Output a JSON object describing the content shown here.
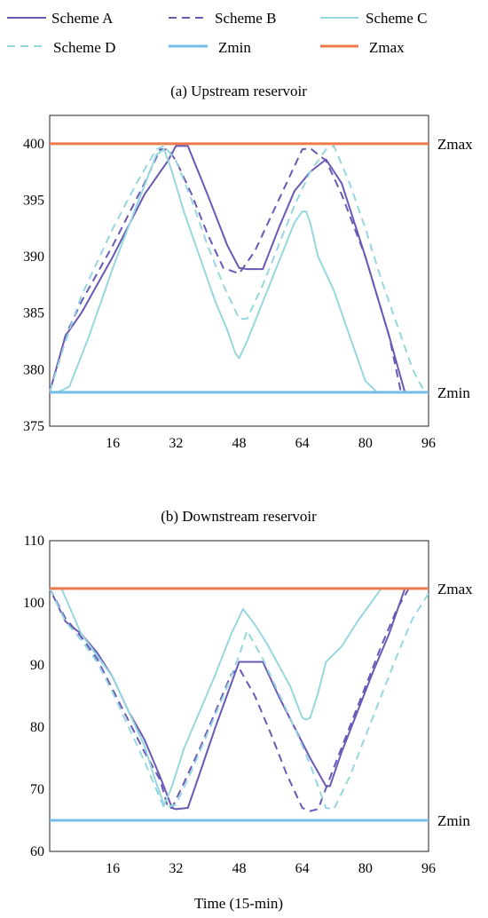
{
  "legend": {
    "entries": [
      {
        "label": "Scheme A",
        "color": "#6a58b5",
        "dash": "solid"
      },
      {
        "label": "Scheme B",
        "color": "#6a58b5",
        "dash": "dashed"
      },
      {
        "label": "Scheme C",
        "color": "#96d7df",
        "dash": "solid"
      },
      {
        "label": "Scheme D",
        "color": "#96d7df",
        "dash": "dashed"
      },
      {
        "label": "Zmin",
        "color": "#74bde4",
        "dash": "solid"
      },
      {
        "label": "Zmax",
        "color": "#ee7a4a",
        "dash": "solid"
      }
    ]
  },
  "colors": {
    "scheme_a": "#6a58b5",
    "scheme_b": "#6a58b5",
    "scheme_c": "#96d7df",
    "scheme_d": "#96d7df",
    "zmin": "#74bde4",
    "zmax": "#ee7a4a"
  },
  "chart_data": [
    {
      "type": "line",
      "title": "(a) Upstream reservoir",
      "xlabel": "",
      "ylabel": "",
      "xlim": [
        0,
        96
      ],
      "ylim": [
        375,
        402.5
      ],
      "xticks": [
        "16",
        "32",
        "48",
        "64",
        "80",
        "96"
      ],
      "yticks": [
        "375",
        "380",
        "385",
        "390",
        "395",
        "400"
      ],
      "grid": false,
      "reference_lines": [
        {
          "name": "Zmax",
          "y": 400
        },
        {
          "name": "Zmin",
          "y": 378
        }
      ],
      "series": [
        {
          "name": "Scheme A",
          "x": [
            0,
            4,
            8,
            16,
            24,
            30,
            32,
            35,
            40,
            45,
            48,
            50,
            54,
            58,
            62,
            66,
            70,
            74,
            80,
            86,
            90
          ],
          "y": [
            378,
            383,
            385,
            390,
            395.5,
            398.5,
            399.8,
            399.8,
            395.5,
            391,
            389,
            388.9,
            388.9,
            392.5,
            395.8,
            397.5,
            398.6,
            396.5,
            390,
            383,
            378
          ]
        },
        {
          "name": "Scheme B",
          "x": [
            0,
            4,
            8,
            16,
            24,
            28,
            30,
            32,
            36,
            40,
            44,
            48,
            52,
            56,
            60,
            64,
            66,
            70,
            74,
            80,
            86,
            89
          ],
          "y": [
            378,
            383,
            386,
            391,
            396.5,
            399.5,
            399.5,
            398.5,
            395.5,
            392,
            389,
            388.5,
            390.5,
            393.5,
            396.5,
            399.5,
            399.6,
            398.5,
            395.5,
            390,
            383,
            378
          ]
        },
        {
          "name": "Scheme C",
          "x": [
            0,
            2,
            5,
            10,
            16,
            22,
            27,
            29,
            31,
            34,
            38,
            42,
            45,
            47,
            48,
            50,
            54,
            58,
            62,
            64,
            65,
            66,
            68,
            72,
            76,
            80,
            83,
            96
          ],
          "y": [
            378,
            378,
            378.5,
            383,
            389,
            394.5,
            399,
            399.5,
            397.5,
            394,
            390,
            386,
            383.5,
            381.5,
            381,
            382.5,
            386,
            389.5,
            393,
            394,
            394,
            393,
            390,
            387,
            383,
            379,
            378,
            378
          ]
        },
        {
          "name": "Scheme D",
          "x": [
            0,
            4,
            8,
            16,
            22,
            27,
            29,
            32,
            36,
            40,
            44,
            48,
            50,
            54,
            58,
            62,
            66,
            70,
            72,
            76,
            80,
            84,
            88,
            92,
            95
          ],
          "y": [
            378,
            382.5,
            386.5,
            392.5,
            396.5,
            399.5,
            399.8,
            398.5,
            395,
            391,
            387.5,
            384.5,
            384.5,
            387.5,
            391,
            394.5,
            397.5,
            399.5,
            399.8,
            396.5,
            392.5,
            388,
            384,
            380,
            378
          ]
        }
      ]
    },
    {
      "type": "line",
      "title": "(b) Downstream reservoir",
      "xlabel": "Time (15-min)",
      "ylabel": "",
      "xlim": [
        0,
        96
      ],
      "ylim": [
        60,
        110
      ],
      "xticks": [
        "16",
        "32",
        "48",
        "64",
        "80",
        "96"
      ],
      "yticks": [
        "60",
        "70",
        "80",
        "90",
        "100",
        "110"
      ],
      "grid": false,
      "reference_lines": [
        {
          "name": "Zmax",
          "y": 102.3
        },
        {
          "name": "Zmin",
          "y": 65
        }
      ],
      "series": [
        {
          "name": "Scheme A",
          "x": [
            0,
            4,
            8,
            12,
            16,
            20,
            24,
            28,
            31,
            32,
            35,
            38,
            42,
            46,
            48,
            54,
            58,
            62,
            66,
            70,
            71,
            74,
            78,
            82,
            86,
            90
          ],
          "y": [
            102.3,
            97,
            95,
            92,
            88,
            82.5,
            78,
            72,
            67,
            66.8,
            67,
            72.5,
            80,
            87,
            90.5,
            90.5,
            85,
            80,
            75,
            70.5,
            70.5,
            76,
            82.5,
            89,
            95,
            102.3
          ]
        },
        {
          "name": "Scheme B",
          "x": [
            0,
            4,
            8,
            12,
            16,
            20,
            24,
            28,
            30,
            31,
            34,
            38,
            42,
            46,
            48,
            52,
            56,
            60,
            64,
            66,
            68,
            72,
            76,
            80,
            84,
            88,
            91
          ],
          "y": [
            102.3,
            97.5,
            94.5,
            91,
            86,
            81,
            76,
            71.5,
            67,
            67,
            71,
            76.5,
            82.5,
            88.5,
            89.5,
            85,
            79,
            72.5,
            67,
            66.5,
            66.8,
            73.5,
            80,
            86.5,
            93,
            99,
            102.3
          ]
        },
        {
          "name": "Scheme C",
          "x": [
            0,
            3,
            8,
            12,
            16,
            20,
            24,
            27,
            29,
            31,
            34,
            38,
            42,
            46,
            49,
            52,
            55,
            58,
            61,
            64,
            65,
            66,
            68,
            70,
            74,
            78,
            82,
            84,
            96
          ],
          "y": [
            102.3,
            102.3,
            95,
            91.5,
            88,
            82.5,
            77,
            71,
            67.5,
            70.5,
            76.5,
            82.5,
            88.5,
            95,
            99,
            96.5,
            93.5,
            90,
            86.5,
            81.5,
            81.2,
            81.5,
            85.5,
            90.5,
            93,
            97,
            100.5,
            102.3,
            102.3
          ]
        },
        {
          "name": "Scheme D",
          "x": [
            0,
            4,
            8,
            12,
            16,
            20,
            24,
            27,
            29,
            32,
            36,
            40,
            44,
            48,
            50,
            54,
            58,
            62,
            66,
            70,
            72,
            76,
            80,
            84,
            88,
            92,
            96
          ],
          "y": [
            102.3,
            97,
            94,
            90.5,
            85.5,
            80,
            74.5,
            70,
            67,
            67.5,
            73,
            79,
            85,
            91.5,
            95.5,
            91,
            85.5,
            80,
            74,
            67,
            66.8,
            72,
            78.5,
            85,
            91.5,
            97.5,
            101.5
          ]
        }
      ]
    }
  ]
}
